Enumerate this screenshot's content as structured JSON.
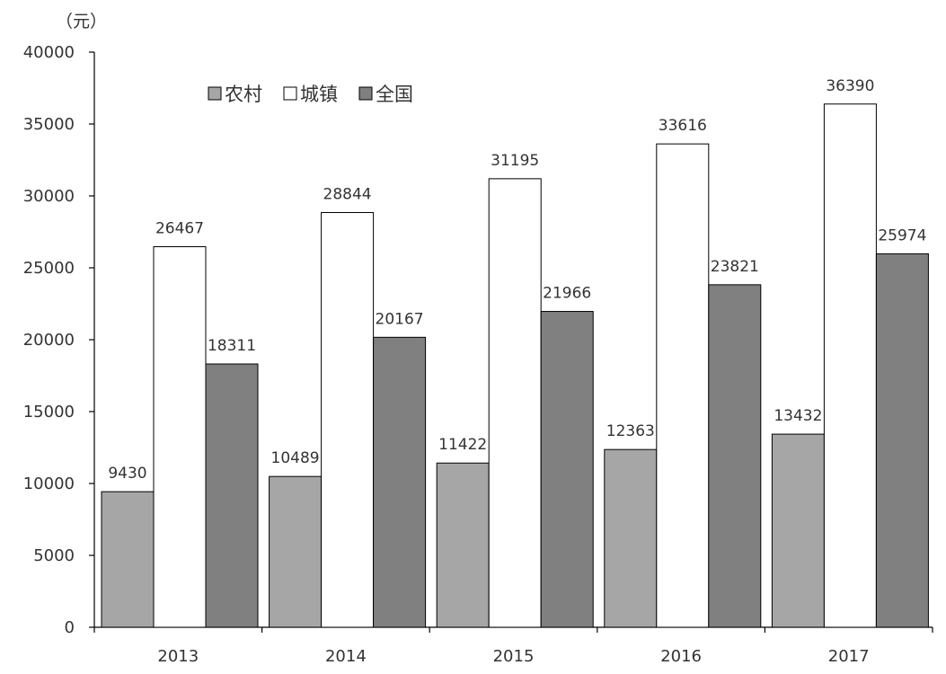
{
  "chart_data": {
    "type": "bar",
    "unit_label": "（元）",
    "categories": [
      "2013",
      "2014",
      "2015",
      "2016",
      "2017"
    ],
    "series": [
      {
        "name": "农村",
        "color": "#a6a6a6",
        "values": [
          9430,
          10489,
          11422,
          12363,
          13432
        ]
      },
      {
        "name": "城镇",
        "color": "#ffffff",
        "values": [
          26467,
          28844,
          31195,
          33616,
          36390
        ]
      },
      {
        "name": "全国",
        "color": "#808080",
        "values": [
          18311,
          20167,
          21966,
          23821,
          25974
        ]
      }
    ],
    "ylim": [
      0,
      40000
    ],
    "yticks": [
      0,
      5000,
      10000,
      15000,
      20000,
      25000,
      30000,
      35000,
      40000
    ],
    "legend_position": "top-left",
    "grid": false
  }
}
